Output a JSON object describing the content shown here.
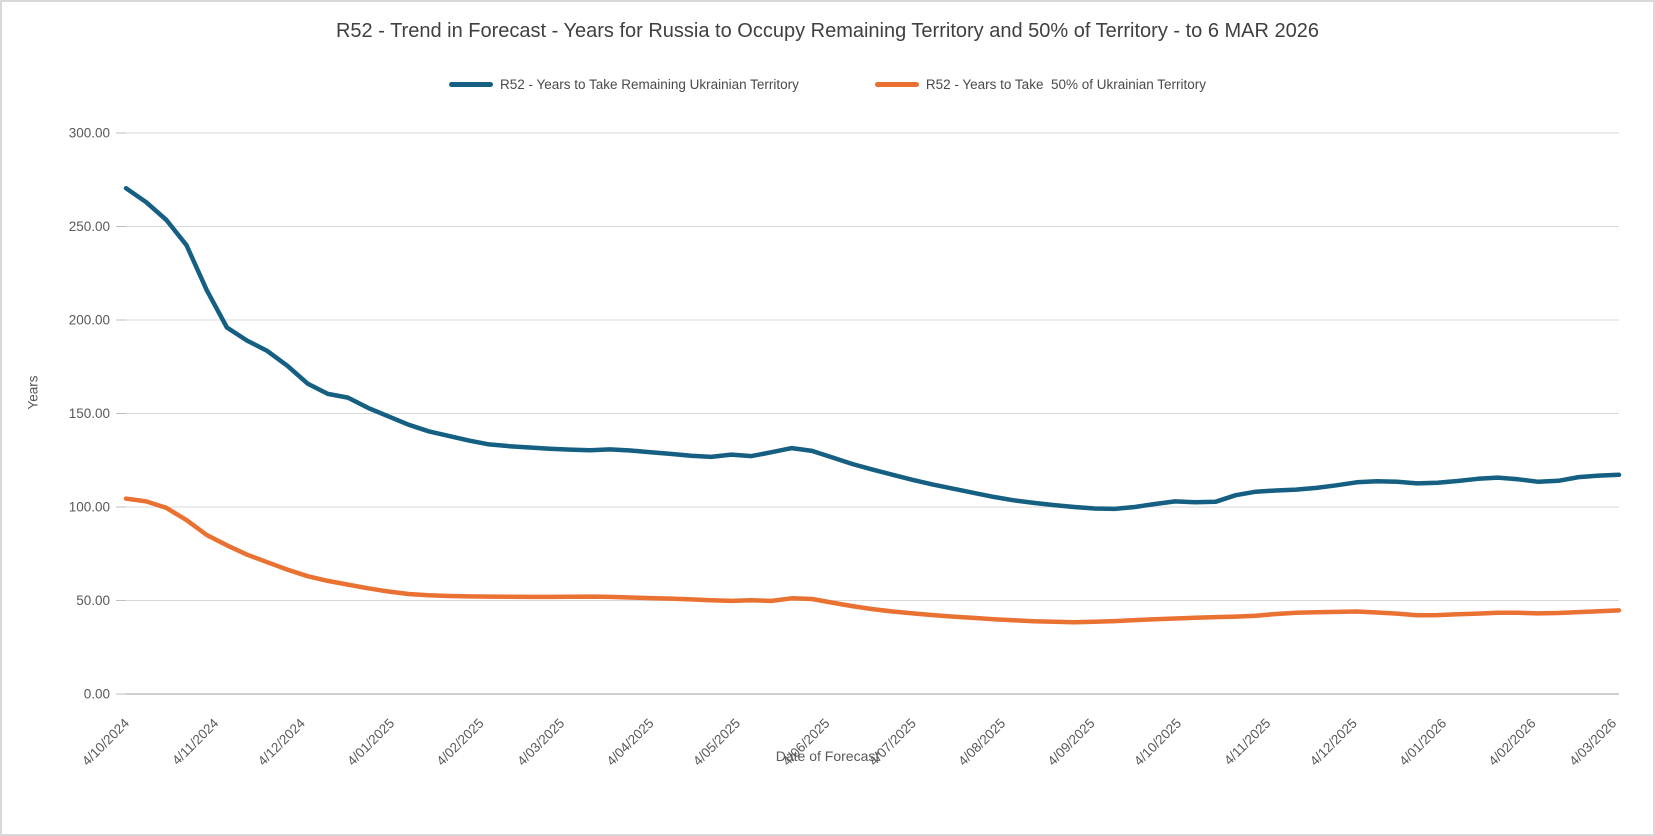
{
  "page": {
    "background": "#FFFFFF",
    "border_color": "#D9D9D9"
  },
  "chart": {
    "title": "R52 - Trend in Forecast - Years for Russia to Occupy Remaining Territory and 50% of Territory - to 6 MAR 2026"
  },
  "chart_data": {
    "type": "line",
    "title": "R52 - Trend in Forecast - Years for Russia to Occupy Remaining Territory and 50% of Territory - to 6 MAR 2026",
    "xlabel": "Date of Forecast",
    "ylabel": "Years",
    "ylim": [
      0,
      300
    ],
    "grid": "horizontal",
    "legend_position": "top",
    "colors": {
      "grid": "#D9D9D9",
      "axis_line": "#BFBFBF",
      "tick_text": "#595959",
      "title_text": "#404040",
      "series_remaining": "#156082",
      "series_50pct": "#E97132"
    },
    "ytick_values": [
      0,
      50,
      100,
      150,
      200,
      250,
      300
    ],
    "ytick_labels": [
      "0.00",
      "50.00",
      "100.00",
      "150.00",
      "200.00",
      "250.00",
      "300.00"
    ],
    "x_axis": {
      "start_label": "4/10/2024",
      "end_label": "4/03/2026",
      "total_days": 518,
      "tick_labels": [
        "4/10/2024",
        "4/11/2024",
        "4/12/2024",
        "4/01/2025",
        "4/02/2025",
        "4/03/2025",
        "4/04/2025",
        "4/05/2025",
        "4/06/2025",
        "4/07/2025",
        "4/08/2025",
        "4/09/2025",
        "4/10/2025",
        "4/11/2025",
        "4/12/2025",
        "4/01/2026",
        "4/02/2026",
        "4/03/2026"
      ],
      "tick_day_offsets": [
        0,
        31,
        61,
        92,
        123,
        151,
        182,
        212,
        243,
        273,
        304,
        335,
        365,
        396,
        426,
        457,
        488,
        516
      ]
    },
    "sample_interval_days": 7,
    "days": [
      0,
      7,
      14,
      21,
      28,
      35,
      42,
      49,
      56,
      63,
      70,
      77,
      84,
      91,
      98,
      105,
      112,
      119,
      126,
      133,
      140,
      147,
      154,
      161,
      168,
      175,
      182,
      189,
      196,
      203,
      210,
      217,
      224,
      231,
      238,
      245,
      252,
      259,
      266,
      273,
      280,
      287,
      294,
      301,
      308,
      315,
      322,
      329,
      336,
      343,
      350,
      357,
      364,
      371,
      378,
      385,
      392,
      399,
      406,
      413,
      420,
      427,
      434,
      441,
      448,
      455,
      462,
      469,
      476,
      483,
      490,
      497,
      504,
      511,
      518
    ],
    "series": [
      {
        "name": "R52 - Years to Take Remaining Ukrainian Territory",
        "color": "#156082",
        "values": [
          270.5,
          263,
          253.5,
          240,
          216,
          196,
          189,
          183.5,
          175.5,
          166,
          160.5,
          158.5,
          153,
          148.5,
          144,
          140.5,
          138,
          135.5,
          133.5,
          132.5,
          131.8,
          131.2,
          130.7,
          130.4,
          130.8,
          130.2,
          129.3,
          128.4,
          127.4,
          126.8,
          128,
          127.2,
          129.3,
          131.5,
          130,
          126.5,
          123,
          120,
          117.2,
          114.5,
          112,
          109.8,
          107.6,
          105.4,
          103.6,
          102.2,
          101,
          100,
          99.2,
          99,
          100,
          101.6,
          103,
          102.5,
          102.8,
          106.3,
          108.2,
          108.8,
          109.3,
          110.2,
          111.6,
          113.2,
          113.8,
          113.5,
          112.6,
          113,
          113.9,
          115.1,
          115.7,
          114.8,
          113.5,
          114,
          116,
          116.8,
          117.2
        ]
      },
      {
        "name": "R52 - Years to Take  50% of Ukrainian Territory",
        "color": "#E97132",
        "values": [
          104.5,
          103,
          99.5,
          93,
          85,
          79.5,
          74.5,
          70.5,
          66.5,
          63,
          60.5,
          58.5,
          56.5,
          54.8,
          53.5,
          52.8,
          52.4,
          52.2,
          52.1,
          52,
          51.9,
          51.9,
          52,
          52.1,
          51.9,
          51.6,
          51.3,
          51,
          50.6,
          50.1,
          49.8,
          50.1,
          49.8,
          51.2,
          50.8,
          48.9,
          47,
          45.4,
          44.1,
          43.1,
          42.2,
          41.4,
          40.7,
          40,
          39.4,
          38.9,
          38.6,
          38.4,
          38.6,
          39,
          39.5,
          40,
          40.4,
          40.8,
          41.1,
          41.4,
          41.8,
          42.8,
          43.4,
          43.7,
          43.9,
          44.1,
          43.6,
          43,
          42.1,
          42.2,
          42.7,
          43,
          43.4,
          43.4,
          43.1,
          43.3,
          43.8,
          44.3,
          44.7
        ]
      }
    ]
  }
}
